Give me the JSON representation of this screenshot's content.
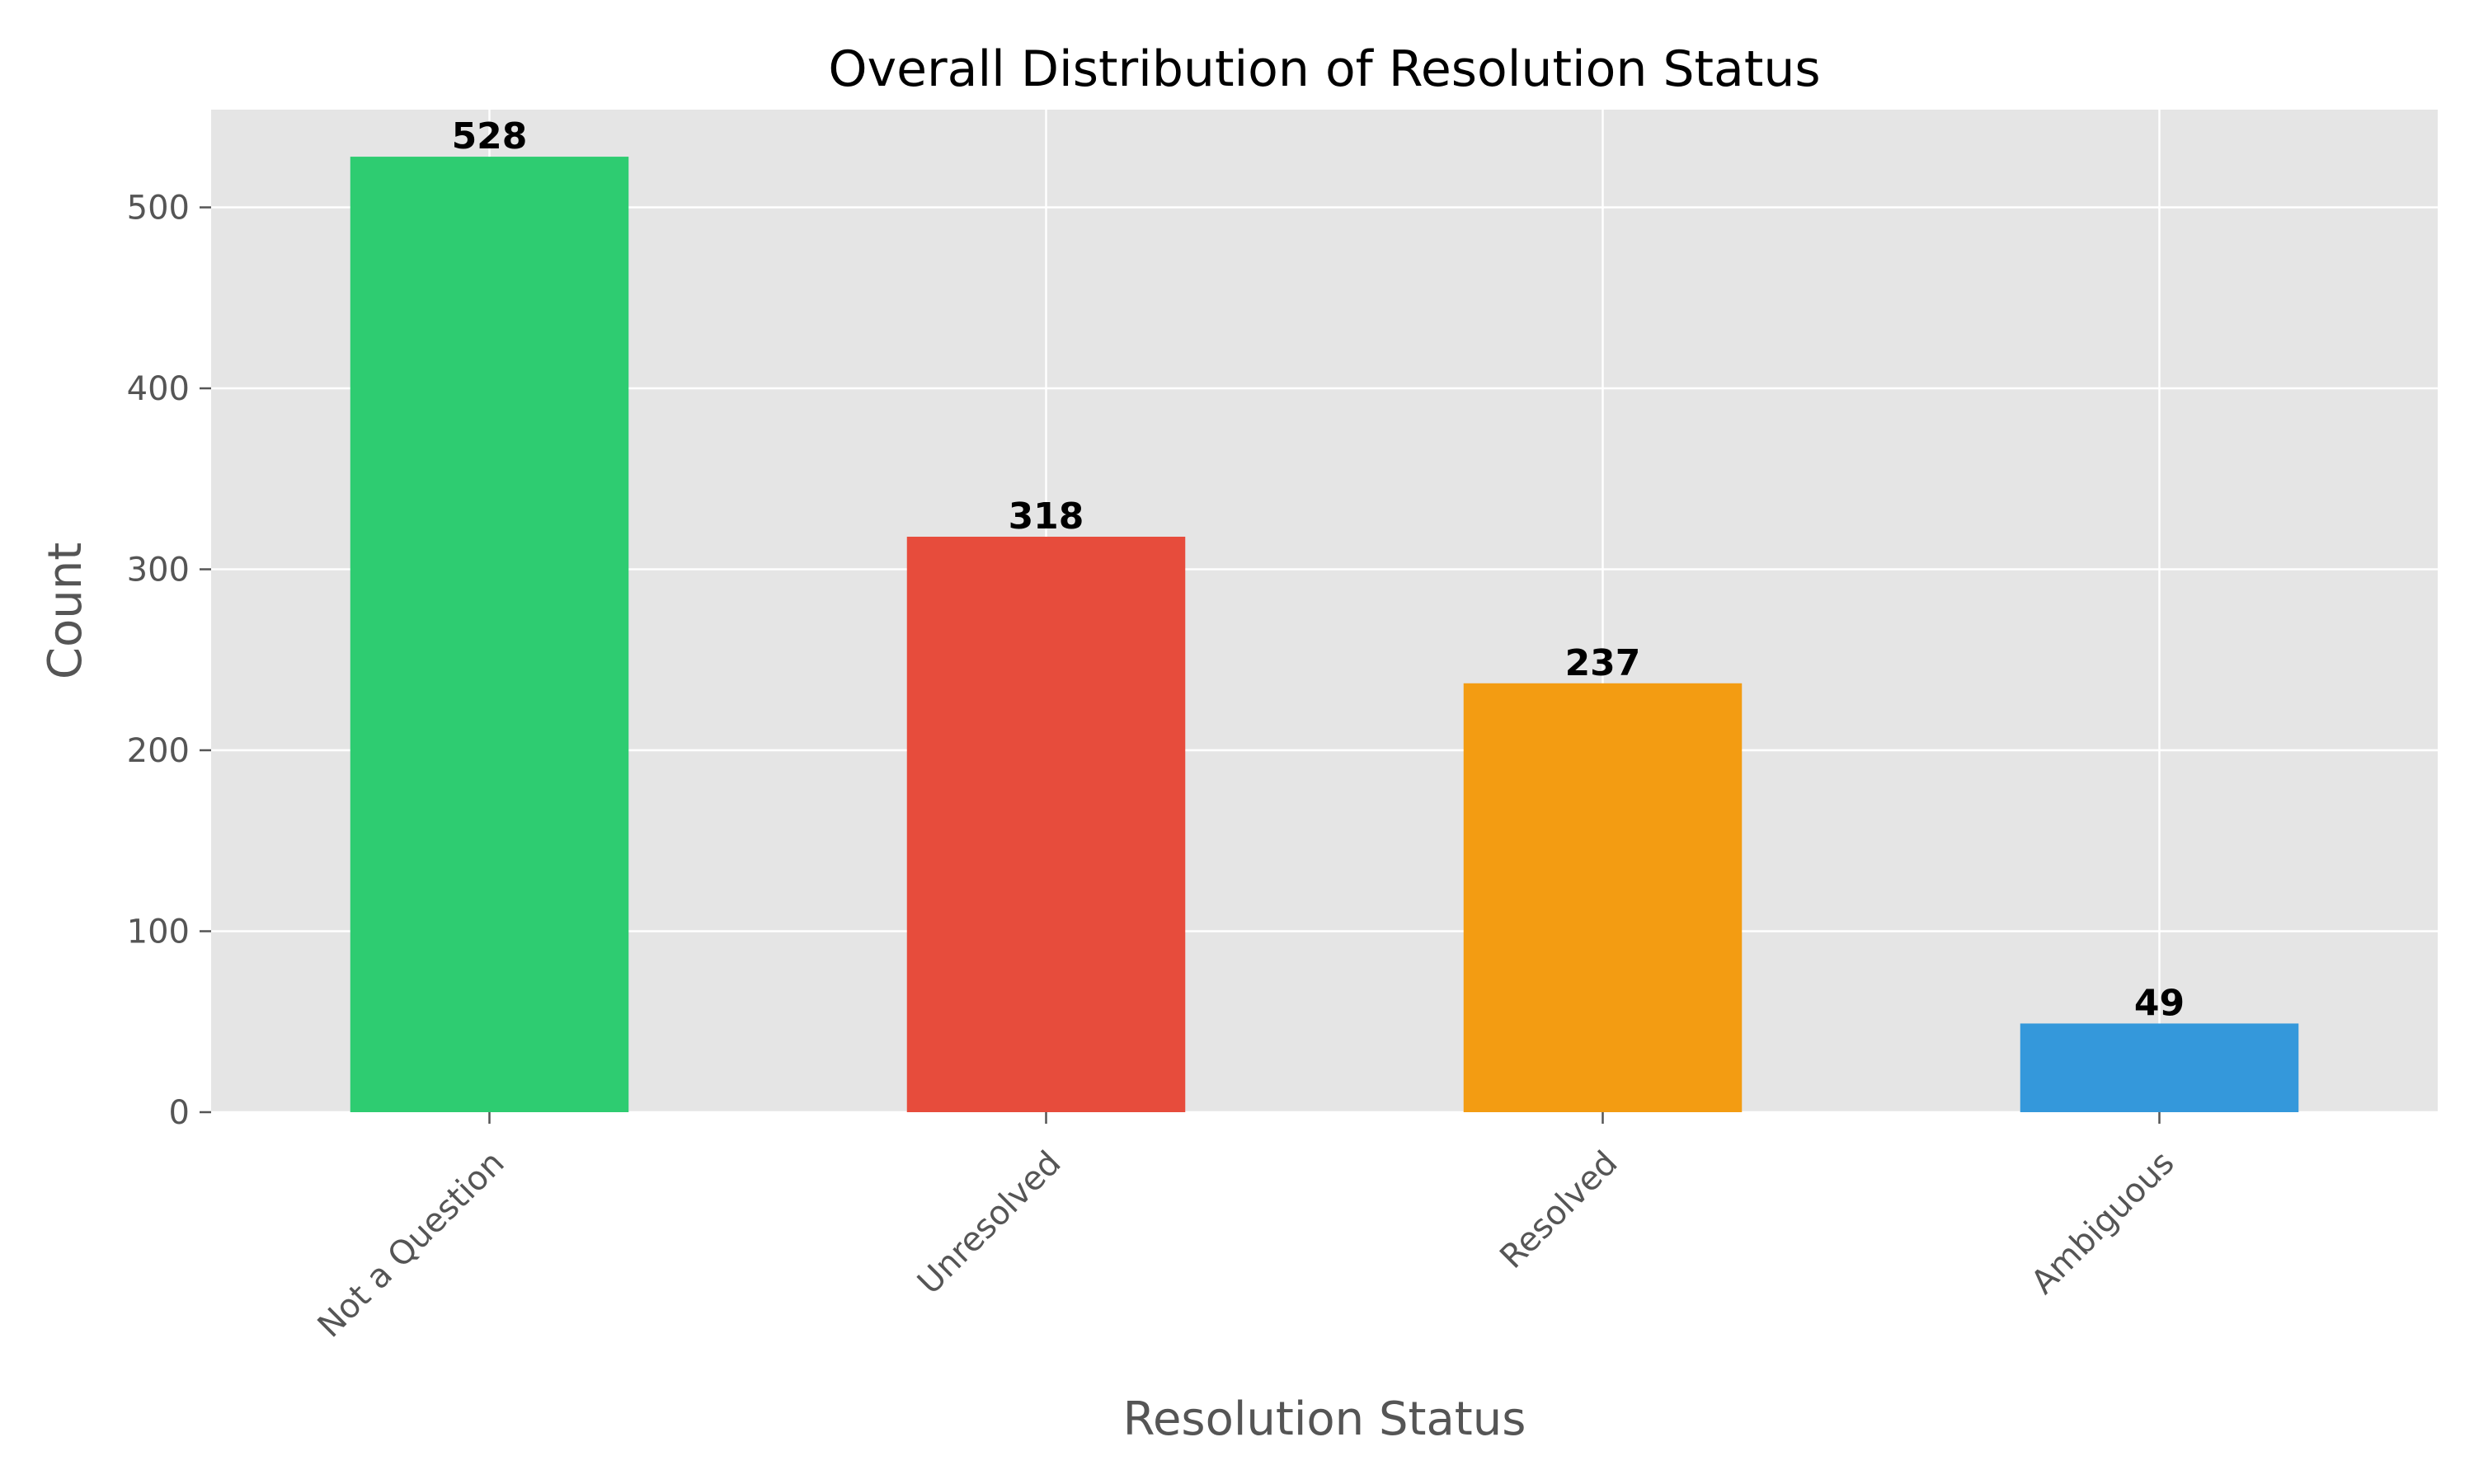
{
  "chart_data": {
    "type": "bar",
    "title": "Overall Distribution of Resolution Status",
    "xlabel": "Resolution Status",
    "ylabel": "Count",
    "categories": [
      "Not a Question",
      "Unresolved",
      "Resolved",
      "Ambiguous"
    ],
    "values": [
      528,
      318,
      237,
      49
    ],
    "value_labels": [
      "528",
      "318",
      "237",
      "49"
    ],
    "colors": [
      "#2ecc71",
      "#e74c3c",
      "#f39c12",
      "#3498db"
    ],
    "ylim": [
      0,
      554
    ],
    "yticks": [
      0,
      100,
      200,
      300,
      400,
      500
    ],
    "ytick_labels": [
      "0",
      "100",
      "200",
      "300",
      "400",
      "500"
    ],
    "grid": true,
    "legend": null,
    "xtick_rotation_deg": 45,
    "plot_background": "#e5e5e5",
    "grid_color": "#ffffff"
  }
}
